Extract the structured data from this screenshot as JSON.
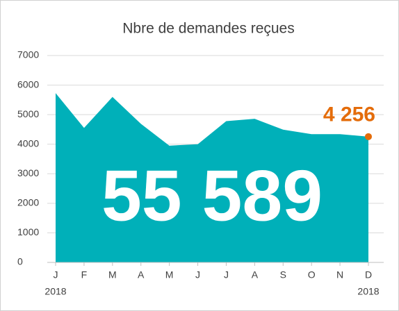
{
  "chart_data": {
    "type": "area",
    "title": "Nbre de demandes reçues",
    "categories": [
      "J",
      "F",
      "M",
      "A",
      "M",
      "J",
      "J",
      "A",
      "S",
      "O",
      "N",
      "D"
    ],
    "year_labels": [
      "2018",
      null,
      null,
      null,
      null,
      null,
      null,
      null,
      null,
      null,
      null,
      "2018"
    ],
    "values": [
      5730,
      4550,
      5600,
      4690,
      3950,
      4000,
      4780,
      4860,
      4493,
      4340,
      4340,
      4256
    ],
    "value_labels": [
      null,
      null,
      null,
      null,
      null,
      null,
      null,
      null,
      null,
      null,
      null,
      "4 256"
    ],
    "total": "55 589",
    "color": "#00b0b9",
    "highlight_color": "#e46c0a",
    "ylim": [
      0,
      7000
    ],
    "yticks": [
      0,
      1000,
      2000,
      3000,
      4000,
      5000,
      6000,
      7000
    ],
    "grid": true
  }
}
